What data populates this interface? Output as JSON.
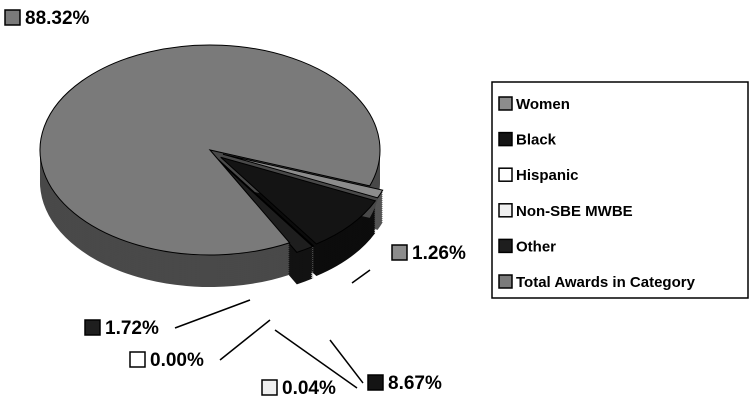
{
  "chart_data": {
    "type": "pie",
    "categories": [
      "Women",
      "Black",
      "Hispanic",
      "Non-SBE MWBE",
      "Other",
      "Total Awards in Category"
    ],
    "values": [
      1.26,
      8.67,
      0.0,
      0.04,
      1.72,
      88.32
    ],
    "value_labels": [
      "1.26%",
      "8.67%",
      "0.00%",
      "0.04%",
      "1.72%",
      "88.32%"
    ],
    "colors": [
      "#8c8c8c",
      "#141414",
      "#ffffff",
      "#efefef",
      "#1e1e1e",
      "#7a7a7a"
    ],
    "legend": "right"
  }
}
